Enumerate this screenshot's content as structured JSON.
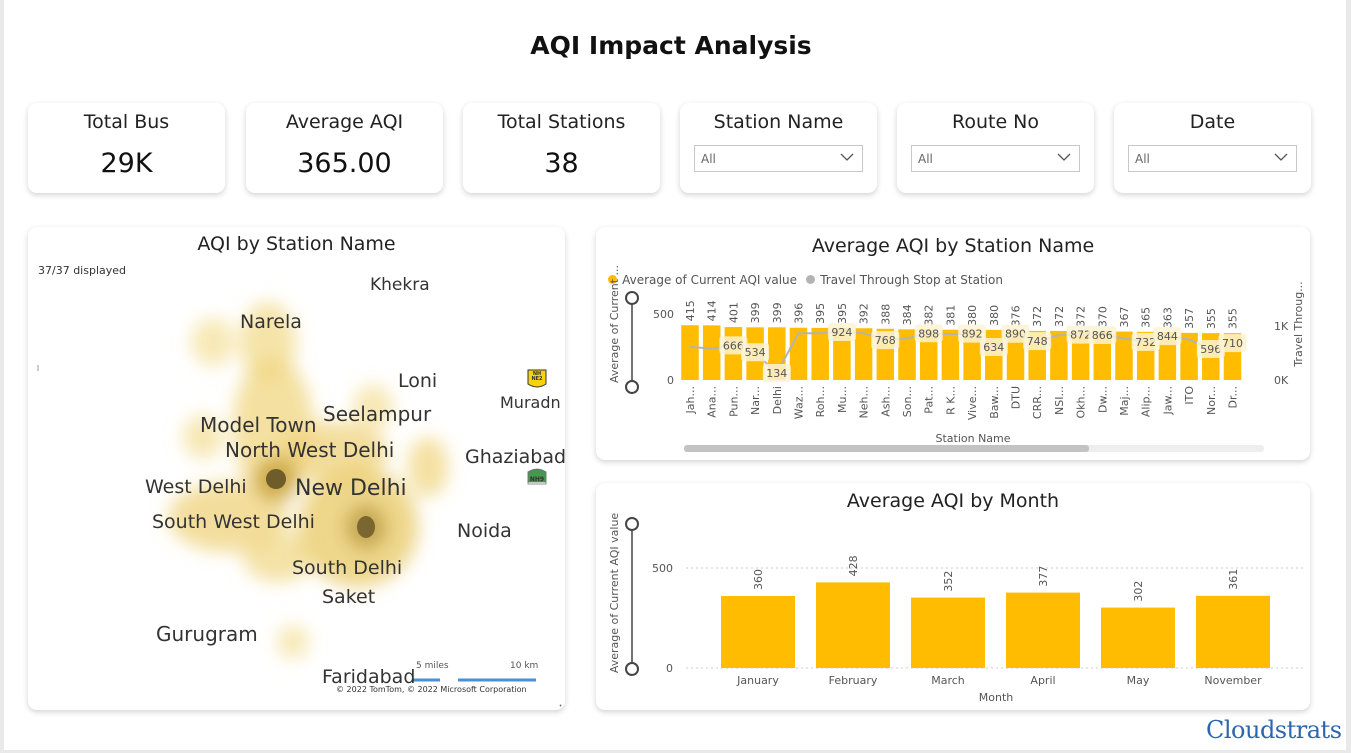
{
  "title": "AQI Impact Analysis",
  "kpis": [
    {
      "label": "Total Bus",
      "value": "29K"
    },
    {
      "label": "Average AQI",
      "value": "365.00"
    },
    {
      "label": "Total Stations",
      "value": "38"
    }
  ],
  "filters": [
    {
      "label": "Station Name",
      "value": "All"
    },
    {
      "label": "Route No",
      "value": "All"
    },
    {
      "label": "Date",
      "value": "All"
    }
  ],
  "map": {
    "title": "AQI by Station Name",
    "displayed": "37/37 displayed",
    "places": [
      "Khekra",
      "Narela",
      "Loni",
      "Muradn",
      "Seelampur",
      "Model Town",
      "North West Delhi",
      "Ghaziabad",
      "West Delhi",
      "New Delhi",
      "South West Delhi",
      "Noida",
      "South Delhi",
      "Saket",
      "Gurugram",
      "Faridabad"
    ],
    "shields": [
      "NH NE2",
      "NH9"
    ],
    "scale": [
      "5 miles",
      "10 km"
    ],
    "copyright": "© 2022 TomTom, © 2022 Microsoft Corporation"
  },
  "station_chart": {
    "title": "Average AQI by Station Name",
    "legend": [
      "Average of Current AQI value",
      "Travel Through Stop at Station"
    ],
    "y_label": "Average of Current ...",
    "y2_label": "Travel Throug...",
    "x_label": "Station Name",
    "y_ticks": [
      "500",
      "0"
    ],
    "y2_ticks": [
      "1K",
      "0K"
    ],
    "colors": {
      "bar": "#FFBC00",
      "line": "#B3B3B3"
    },
    "stations": [
      "Jah...",
      "Ana...",
      "Pun...",
      "Nar...",
      "Delhi",
      "Waz...",
      "Roh...",
      "Mu...",
      "Neh...",
      "Ash...",
      "Son...",
      "Pat...",
      "R K...",
      "Vive...",
      "Baw...",
      "DTU",
      "CRR...",
      "NSI...",
      "Okh...",
      "Dw...",
      "Maj...",
      "Alip...",
      "Jaw...",
      "ITO",
      "Nor...",
      "Dr..."
    ],
    "aqi": [
      415,
      414,
      401,
      399,
      399,
      396,
      395,
      395,
      392,
      388,
      384,
      382,
      381,
      380,
      380,
      376,
      372,
      372,
      372,
      370,
      367,
      365,
      363,
      357,
      355,
      355
    ],
    "travel_labels": [
      "",
      "",
      "666",
      "534",
      "134",
      "",
      "",
      "924",
      "",
      "768",
      "",
      "898",
      "",
      "892",
      "634",
      "890",
      "748",
      "",
      "872",
      "866",
      "",
      "732",
      "844",
      "",
      "596",
      "710"
    ]
  },
  "chart_data": {
    "type": "bar",
    "title": "Average AQI by Month",
    "categories": [
      "January",
      "February",
      "March",
      "April",
      "May",
      "November"
    ],
    "values": [
      360,
      428,
      352,
      377,
      302,
      361
    ],
    "xlabel": "Month",
    "ylabel": "Average of Current AQI value",
    "y_ticks": [
      "500",
      "0"
    ],
    "ylim": [
      0,
      600
    ],
    "color": "#FFBC00"
  },
  "brand": "Cloudstrats"
}
